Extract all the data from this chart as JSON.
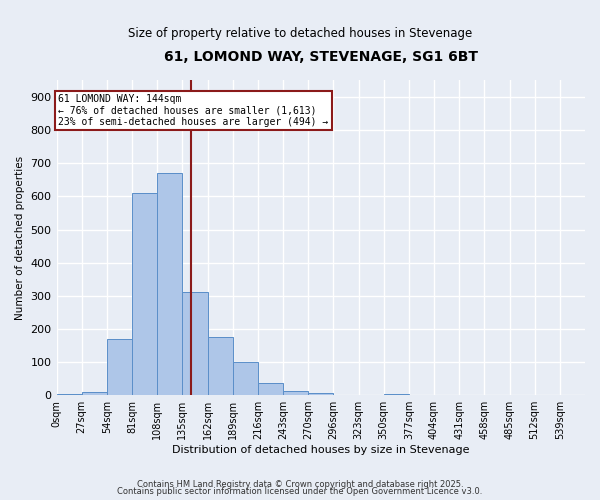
{
  "title": "61, LOMOND WAY, STEVENAGE, SG1 6BT",
  "subtitle": "Size of property relative to detached houses in Stevenage",
  "xlabel": "Distribution of detached houses by size in Stevenage",
  "ylabel": "Number of detached properties",
  "bar_labels": [
    "0sqm",
    "27sqm",
    "54sqm",
    "81sqm",
    "108sqm",
    "135sqm",
    "162sqm",
    "189sqm",
    "216sqm",
    "243sqm",
    "270sqm",
    "296sqm",
    "323sqm",
    "350sqm",
    "377sqm",
    "404sqm",
    "431sqm",
    "458sqm",
    "485sqm",
    "512sqm",
    "539sqm"
  ],
  "bar_values": [
    5,
    10,
    170,
    610,
    670,
    310,
    175,
    100,
    38,
    12,
    8,
    0,
    0,
    5,
    0,
    0,
    0,
    0,
    0,
    0,
    0
  ],
  "bar_color": "#aec6e8",
  "bar_edge_color": "#5b8fc9",
  "background_color": "#e8edf5",
  "grid_color": "#ffffff",
  "vline_color": "#8b1a1a",
  "annotation_text": "61 LOMOND WAY: 144sqm\n← 76% of detached houses are smaller (1,613)\n23% of semi-detached houses are larger (494) →",
  "annotation_box_facecolor": "#ffffff",
  "annotation_box_edgecolor": "#8b1a1a",
  "ylim": [
    0,
    950
  ],
  "yticks": [
    0,
    100,
    200,
    300,
    400,
    500,
    600,
    700,
    800,
    900
  ],
  "footnote1": "Contains HM Land Registry data © Crown copyright and database right 2025.",
  "footnote2": "Contains public sector information licensed under the Open Government Licence v3.0.",
  "bin_width": 27,
  "vline_bin_index": 5.33
}
